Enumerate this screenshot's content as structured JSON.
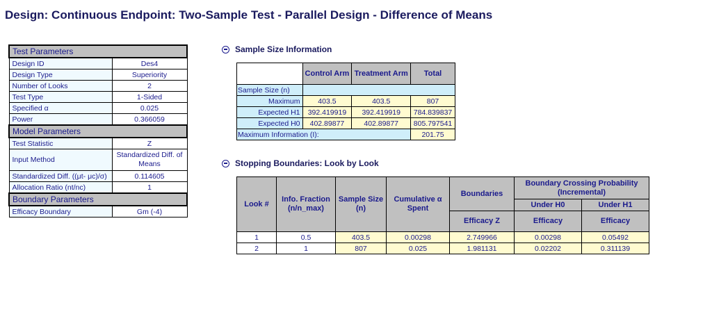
{
  "page": {
    "title": "Design: Continuous Endpoint: Two-Sample Test - Parallel Design - Difference of Means"
  },
  "params": {
    "test_section": "Test Parameters",
    "test_rows": [
      {
        "label": "Design ID",
        "value": "Des4"
      },
      {
        "label": "Design Type",
        "value": "Superiority"
      },
      {
        "label": "Number of Looks",
        "value": "2"
      },
      {
        "label": "Test Type",
        "value": "1-Sided"
      },
      {
        "label": "Specified α",
        "value": "0.025"
      },
      {
        "label": "Power",
        "value": "0.366059"
      }
    ],
    "model_section": "Model Parameters",
    "model_rows": [
      {
        "label": "Test Statistic",
        "value": "Z"
      },
      {
        "label": "Input Method",
        "value": "Standardized Diff. of Means"
      },
      {
        "label": "Standardized Diff. ((μt- μc)/σ)",
        "value": "0.114605"
      },
      {
        "label": "Allocation Ratio (nt/nc)",
        "value": "1"
      }
    ],
    "boundary_section": "Boundary Parameters",
    "boundary_rows": [
      {
        "label": "Efficacy Boundary",
        "value": "Gm (-4)"
      }
    ]
  },
  "sample_size": {
    "heading": "Sample Size Information",
    "headers": {
      "control": "Control Arm",
      "treatment": "Treatment Arm",
      "total": "Total"
    },
    "sample_size_label": "Sample Size (n)",
    "rows": [
      {
        "label": "Maximum",
        "control": "403.5",
        "treatment": "403.5",
        "total": "807"
      },
      {
        "label": "Expected H1",
        "control": "392.419919",
        "treatment": "392.419919",
        "total": "784.839837"
      },
      {
        "label": "Expected H0",
        "control": "402.89877",
        "treatment": "402.89877",
        "total": "805.797541"
      }
    ],
    "max_info_label": "Maximum Information (I):",
    "max_info_value": "201.75"
  },
  "stopping": {
    "heading": "Stopping Boundaries: Look by Look",
    "headers": {
      "look": "Look #",
      "info_fraction": "Info. Fraction (n/n_max)",
      "sample_size": "Sample Size (n)",
      "cum_alpha": "Cumulative α Spent",
      "boundaries": "Boundaries",
      "efficacy_z": "Efficacy Z",
      "bcp": "Boundary Crossing Probability (Incremental)",
      "under_h0": "Under H0",
      "under_h1": "Under H1",
      "efficacy_h0": "Efficacy",
      "efficacy_h1": "Efficacy"
    },
    "rows": [
      {
        "look": "1",
        "info": "0.5",
        "n": "403.5",
        "alpha": "0.00298",
        "z": "2.749966",
        "h0": "0.00298",
        "h1": "0.05492"
      },
      {
        "look": "2",
        "info": "1",
        "n": "807",
        "alpha": "0.025",
        "z": "1.981131",
        "h0": "0.02202",
        "h1": "0.311139"
      }
    ]
  }
}
